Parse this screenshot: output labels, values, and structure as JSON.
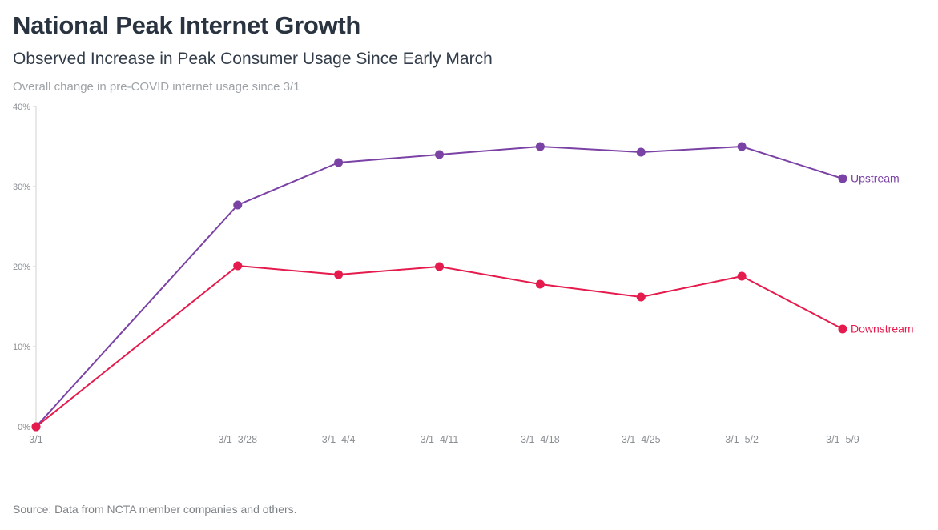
{
  "page": {
    "title": "National Peak Internet Growth",
    "subtitle": "Observed Increase in Peak Consumer Usage Since Early March",
    "note": "Overall change in pre-COVID internet usage since 3/1",
    "source": "Source: Data from NCTA member companies and others."
  },
  "colors": {
    "upstream": "#7b42a6",
    "downstream": "#e51b4d",
    "axis_line": "#cfd2d6",
    "tick_text": "#8a8f94"
  },
  "chart_data": {
    "type": "line",
    "title": "National Peak Internet Growth",
    "subtitle": "Observed Increase in Peak Consumer Usage Since Early March",
    "categories": [
      "3/1",
      "3/1–3/28",
      "3/1–4/4",
      "3/1–4/11",
      "3/1–4/18",
      "3/1–4/25",
      "3/1–5/2",
      "3/1–5/9"
    ],
    "x_units": [
      0,
      2,
      3,
      4,
      5,
      6,
      7,
      8
    ],
    "series": [
      {
        "name": "Upstream",
        "color": "#7b42a6",
        "values": [
          0,
          27.7,
          33.0,
          34.0,
          35.0,
          34.3,
          35.0,
          31.0
        ]
      },
      {
        "name": "Downstream",
        "color": "#e51b4d",
        "values": [
          0,
          20.1,
          19.0,
          20.0,
          17.8,
          16.2,
          18.8,
          12.2
        ]
      }
    ],
    "xlabel": "",
    "ylabel": "",
    "ylim": [
      0,
      40
    ],
    "yticks": [
      0,
      10,
      20,
      30,
      40
    ],
    "ytick_format": "percent",
    "grid": false,
    "legend_position": "line-end-labels",
    "marker": "filled-circle"
  }
}
